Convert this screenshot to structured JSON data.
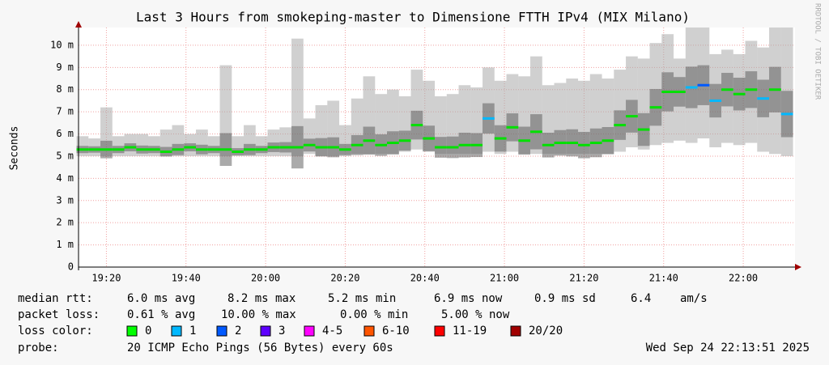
{
  "chart_data": {
    "type": "smokeping",
    "title": "Last 3 Hours from smokeping-master to Dimensione FTTH IPv4 (MIX Milano)",
    "y_label": "Seconds",
    "side_label": "RRDTOOL / TOBI OETIKER",
    "xlim": [
      "19:13",
      "22:13"
    ],
    "xticks": [
      "19:20",
      "19:40",
      "20:00",
      "20:20",
      "20:40",
      "21:00",
      "21:20",
      "21:40",
      "22:00"
    ],
    "ylim": [
      0,
      10.8
    ],
    "yticks": [
      0,
      {
        "value": 1,
        "label": "1 m"
      },
      {
        "value": 2,
        "label": "2 m"
      },
      {
        "value": 3,
        "label": "3 m"
      },
      {
        "value": 4,
        "label": "4 m"
      },
      {
        "value": 5,
        "label": "5 m"
      },
      {
        "value": 6,
        "label": "6 m"
      },
      {
        "value": 7,
        "label": "7 m"
      },
      {
        "value": 8,
        "label": "8 m"
      },
      {
        "value": 9,
        "label": "9 m"
      },
      {
        "value": 10,
        "label": "10 m"
      }
    ],
    "grid": true,
    "x": [
      "19:14",
      "19:17",
      "19:20",
      "19:23",
      "19:26",
      "19:29",
      "19:32",
      "19:35",
      "19:38",
      "19:41",
      "19:44",
      "19:47",
      "19:50",
      "19:53",
      "19:56",
      "19:59",
      "20:02",
      "20:05",
      "20:08",
      "20:11",
      "20:14",
      "20:17",
      "20:20",
      "20:23",
      "20:26",
      "20:29",
      "20:32",
      "20:35",
      "20:38",
      "20:41",
      "20:44",
      "20:47",
      "20:50",
      "20:53",
      "20:56",
      "20:59",
      "21:02",
      "21:05",
      "21:08",
      "21:11",
      "21:14",
      "21:17",
      "21:20",
      "21:23",
      "21:26",
      "21:29",
      "21:32",
      "21:35",
      "21:38",
      "21:41",
      "21:44",
      "21:47",
      "21:50",
      "21:53",
      "21:56",
      "21:59",
      "22:02",
      "22:05",
      "22:08",
      "22:11"
    ],
    "values": [
      5.3,
      5.3,
      5.3,
      5.3,
      5.4,
      5.3,
      5.3,
      5.2,
      5.3,
      5.4,
      5.3,
      5.3,
      5.3,
      5.2,
      5.3,
      5.3,
      5.4,
      5.4,
      5.4,
      5.5,
      5.4,
      5.4,
      5.3,
      5.5,
      5.7,
      5.5,
      5.6,
      5.7,
      6.4,
      5.8,
      5.4,
      5.4,
      5.5,
      5.5,
      6.7,
      5.8,
      6.3,
      5.7,
      6.1,
      5.5,
      5.6,
      5.6,
      5.5,
      5.6,
      5.7,
      6.4,
      6.8,
      6.2,
      7.2,
      7.9,
      7.9,
      8.1,
      8.2,
      7.5,
      8.0,
      7.8,
      8.0,
      7.6,
      8.0,
      6.9
    ],
    "point_colors": [
      "#00e000",
      "#00e000",
      "#00e000",
      "#00e000",
      "#00e000",
      "#00e000",
      "#00e000",
      "#00e000",
      "#00e000",
      "#00e000",
      "#00e000",
      "#00e000",
      "#00e000",
      "#00e000",
      "#00e000",
      "#00e000",
      "#00e000",
      "#00e000",
      "#00e000",
      "#00e000",
      "#00e000",
      "#00e000",
      "#00e000",
      "#00e000",
      "#00e000",
      "#00e000",
      "#00e000",
      "#00e000",
      "#00e000",
      "#00e000",
      "#00e000",
      "#00e000",
      "#00e000",
      "#00e000",
      "#00b8ff",
      "#00e000",
      "#00e000",
      "#00e000",
      "#00e000",
      "#00e000",
      "#00e000",
      "#00e000",
      "#00e000",
      "#00e000",
      "#00e000",
      "#00e000",
      "#00e000",
      "#00e000",
      "#00e000",
      "#00e000",
      "#00e000",
      "#00b8ff",
      "#0059ff",
      "#00b8ff",
      "#00e000",
      "#00e000",
      "#00e000",
      "#00b8ff",
      "#00e000",
      "#00b8ff"
    ],
    "smoke": {
      "color": "#aaaaaa",
      "low": [
        5.0,
        5.0,
        5.0,
        5.0,
        5.0,
        5.0,
        5.0,
        5.0,
        5.0,
        5.0,
        5.0,
        5.0,
        5.0,
        5.0,
        5.0,
        5.0,
        5.0,
        5.0,
        5.0,
        5.1,
        5.0,
        5.0,
        5.0,
        5.1,
        5.1,
        5.1,
        5.1,
        5.2,
        5.3,
        5.2,
        5.1,
        5.1,
        5.1,
        5.1,
        5.2,
        5.1,
        5.2,
        5.1,
        5.1,
        5.1,
        5.1,
        5.1,
        5.1,
        5.1,
        5.1,
        5.2,
        5.4,
        5.3,
        5.5,
        5.6,
        5.7,
        5.6,
        5.8,
        5.4,
        5.6,
        5.5,
        5.6,
        5.2,
        5.1,
        5.0
      ],
      "high": [
        5.9,
        5.8,
        7.2,
        5.9,
        6.0,
        6.0,
        5.9,
        6.2,
        6.4,
        6.0,
        6.2,
        5.9,
        9.1,
        5.9,
        6.4,
        5.9,
        6.2,
        6.3,
        10.3,
        6.7,
        7.3,
        7.5,
        6.4,
        7.6,
        8.6,
        7.8,
        8.0,
        7.7,
        8.9,
        8.4,
        7.7,
        7.8,
        8.2,
        8.1,
        9.0,
        8.4,
        8.7,
        8.6,
        9.5,
        8.2,
        8.3,
        8.5,
        8.4,
        8.7,
        8.5,
        8.9,
        9.5,
        9.4,
        10.1,
        10.5,
        9.4,
        10.8,
        10.8,
        9.6,
        9.8,
        9.6,
        10.2,
        9.9,
        10.8,
        10.8
      ]
    }
  },
  "stats": [
    {
      "label": "median rtt:",
      "items": [
        "6.0 ms avg",
        "8.2 ms max",
        "5.2 ms min",
        "6.9 ms now",
        "0.9 ms sd",
        "6.4",
        "am/s"
      ]
    },
    {
      "label": "packet loss:",
      "items": [
        "0.61 % avg",
        "10.00 % max",
        "0.00 % min",
        "5.00 % now"
      ]
    }
  ],
  "loss_colors": {
    "label": "loss color:",
    "items": [
      {
        "label": "0",
        "color": "#00ff00"
      },
      {
        "label": "1",
        "color": "#00b8ff"
      },
      {
        "label": "2",
        "color": "#0059ff"
      },
      {
        "label": "3",
        "color": "#5e00ff"
      },
      {
        "label": "4-5",
        "color": "#ff00ff"
      },
      {
        "label": "6-10",
        "color": "#ff5500"
      },
      {
        "label": "11-19",
        "color": "#ff0000"
      },
      {
        "label": "20/20",
        "color": "#a10000"
      }
    ]
  },
  "probe": {
    "label": "probe:",
    "text": "20 ICMP Echo Pings (56 Bytes) every 60s",
    "date": "Wed Sep 24 22:13:51 2025"
  }
}
